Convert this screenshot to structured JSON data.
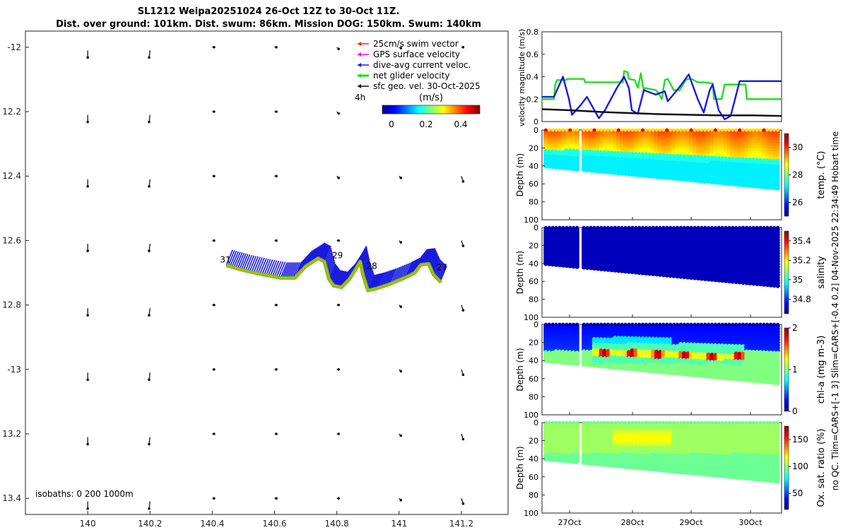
{
  "title": {
    "line1": "SL1212 Weipa20251024 26-Oct 12Z to 30-Oct 11Z.",
    "line2": "Dist. over ground: 101km. Dist. swum: 86km. Mission DOG: 150km. Swum: 140km"
  },
  "side_label": {
    "line1": "no QC. Tlim=CARS+[-1 3] Slim=CARS+[-0.4 0.2] 04-Nov-2025 22:34:49 Hobart time"
  },
  "colors": {
    "swim": "#ff2020",
    "gps": "#ff00ff",
    "dive_avg": "#1a1adf",
    "net_glider": "#22dd22",
    "sfc_geo": "#111111",
    "track_orange": "#ff9900"
  },
  "chart_data": [
    {
      "id": "map",
      "type": "scatter",
      "title": "",
      "xlabel": "",
      "ylabel": "",
      "xlim": [
        139.8,
        141.35
      ],
      "ylim": [
        -13.45,
        -11.95
      ],
      "x_ticks": [
        140,
        140.2,
        140.4,
        140.6,
        140.8,
        141,
        141.2
      ],
      "x_tick_labels": [
        "140",
        "140.2",
        "140.4",
        "140.6",
        "140.8",
        "141",
        "141.2"
      ],
      "y_ticks": [
        -12,
        -12.2,
        -12.4,
        -12.6,
        -12.8,
        -13,
        -13.2,
        -13.4
      ],
      "y_tick_labels": [
        "-12",
        "12.2",
        "12.4",
        "12.6",
        "12.8",
        "-13",
        "13.2",
        "13.4"
      ],
      "legend": [
        {
          "label": "25cm/s swim vector",
          "color": "#ff2020"
        },
        {
          "label": "GPS surface velocity",
          "color": "#ff00ff"
        },
        {
          "label": "dive-avg current veloc.",
          "color": "#1a1adf"
        },
        {
          "label": "net glider velocity",
          "color": "#22dd22"
        },
        {
          "label": "sfc geo. vel. 30-Oct-2025",
          "color": "#111111"
        }
      ],
      "legend_extra": "4h",
      "colorbar_label": "(m/s)",
      "colorbar_ticks": [
        "0",
        "0.2",
        "0.4"
      ],
      "isobaths_label": "isobaths: 0   200  1000m",
      "track": [
        [
          140.445,
          -12.677
        ],
        [
          140.5,
          -12.692
        ],
        [
          140.56,
          -12.705
        ],
        [
          140.62,
          -12.716
        ],
        [
          140.665,
          -12.716
        ],
        [
          140.7,
          -12.68
        ],
        [
          140.74,
          -12.655
        ],
        [
          140.76,
          -12.665
        ],
        [
          140.775,
          -12.72
        ],
        [
          140.79,
          -12.74
        ],
        [
          140.815,
          -12.745
        ],
        [
          140.84,
          -12.72
        ],
        [
          140.86,
          -12.69
        ],
        [
          140.875,
          -12.665
        ],
        [
          140.885,
          -12.71
        ],
        [
          140.9,
          -12.755
        ],
        [
          140.93,
          -12.748
        ],
        [
          140.97,
          -12.735
        ],
        [
          141.02,
          -12.715
        ],
        [
          141.05,
          -12.7
        ],
        [
          141.07,
          -12.675
        ],
        [
          141.095,
          -12.672
        ],
        [
          141.11,
          -12.705
        ],
        [
          141.135,
          -12.73
        ]
      ],
      "day_labels": [
        {
          "text": "31",
          "x": 140.425,
          "y": -12.668
        },
        {
          "text": "29",
          "x": 140.785,
          "y": -12.655
        },
        {
          "text": "28",
          "x": 140.895,
          "y": -12.688
        },
        {
          "text": "27",
          "x": 141.12,
          "y": -12.692
        }
      ],
      "geo_vectors": [
        {
          "lon": 140,
          "lat": -12.01,
          "u": 0.0,
          "v": -0.04
        },
        {
          "lon": 140.2,
          "lat": -12.01,
          "u": -0.005,
          "v": -0.04
        },
        {
          "lon": 140.4,
          "lat": -12.0,
          "u": 0.01,
          "v": 0.0
        },
        {
          "lon": 140.6,
          "lat": -12.0,
          "u": 0.01,
          "v": 0.0
        },
        {
          "lon": 140.8,
          "lat": -12.0,
          "u": 0.01,
          "v": -0.01
        },
        {
          "lon": 141,
          "lat": -12.0,
          "u": 0.01,
          "v": -0.005
        },
        {
          "lon": 141.2,
          "lat": -12.0,
          "u": 0.01,
          "v": 0.0
        },
        {
          "lon": 140,
          "lat": -12.21,
          "u": 0.0,
          "v": -0.04
        },
        {
          "lon": 140.2,
          "lat": -12.21,
          "u": -0.005,
          "v": -0.04
        },
        {
          "lon": 140.4,
          "lat": -12.2,
          "u": 0.01,
          "v": 0.0
        },
        {
          "lon": 140.6,
          "lat": -12.2,
          "u": 0.01,
          "v": 0.0
        },
        {
          "lon": 140.8,
          "lat": -12.2,
          "u": 0.01,
          "v": -0.01
        },
        {
          "lon": 141,
          "lat": -12.2,
          "u": 0.01,
          "v": 0.0
        },
        {
          "lon": 141.2,
          "lat": -12.2,
          "u": 0.01,
          "v": -0.005
        },
        {
          "lon": 140,
          "lat": -12.41,
          "u": 0.0,
          "v": -0.04
        },
        {
          "lon": 140.2,
          "lat": -12.41,
          "u": -0.005,
          "v": -0.04
        },
        {
          "lon": 140.4,
          "lat": -12.4,
          "u": 0.01,
          "v": 0.0
        },
        {
          "lon": 140.6,
          "lat": -12.4,
          "u": 0.01,
          "v": 0.0
        },
        {
          "lon": 140.8,
          "lat": -12.4,
          "u": 0.01,
          "v": -0.01
        },
        {
          "lon": 141,
          "lat": -12.4,
          "u": 0.01,
          "v": -0.01
        },
        {
          "lon": 141.2,
          "lat": -12.4,
          "u": 0.01,
          "v": -0.03
        },
        {
          "lon": 140,
          "lat": -12.61,
          "u": 0.0,
          "v": -0.04
        },
        {
          "lon": 140.2,
          "lat": -12.61,
          "u": -0.005,
          "v": -0.04
        },
        {
          "lon": 140.4,
          "lat": -12.6,
          "u": 0.01,
          "v": 0.0
        },
        {
          "lon": 140.6,
          "lat": -12.6,
          "u": 0.01,
          "v": 0.0
        },
        {
          "lon": 140.8,
          "lat": -12.6,
          "u": 0.01,
          "v": 0.0
        },
        {
          "lon": 141,
          "lat": -12.6,
          "u": 0.01,
          "v": -0.01
        },
        {
          "lon": 141.2,
          "lat": -12.6,
          "u": 0.01,
          "v": -0.03
        },
        {
          "lon": 140,
          "lat": -12.81,
          "u": 0.0,
          "v": -0.04
        },
        {
          "lon": 140.2,
          "lat": -12.81,
          "u": -0.005,
          "v": -0.04
        },
        {
          "lon": 140.4,
          "lat": -12.8,
          "u": 0.01,
          "v": 0.0
        },
        {
          "lon": 140.6,
          "lat": -12.8,
          "u": 0.01,
          "v": 0.0
        },
        {
          "lon": 140.8,
          "lat": -12.8,
          "u": 0.01,
          "v": 0.0
        },
        {
          "lon": 141,
          "lat": -12.8,
          "u": 0.01,
          "v": -0.01
        },
        {
          "lon": 141.2,
          "lat": -12.8,
          "u": 0.01,
          "v": -0.03
        },
        {
          "lon": 140,
          "lat": -13.01,
          "u": 0.0,
          "v": -0.04
        },
        {
          "lon": 140.2,
          "lat": -13.01,
          "u": -0.005,
          "v": -0.04
        },
        {
          "lon": 140.4,
          "lat": -13.0,
          "u": 0.01,
          "v": 0.0
        },
        {
          "lon": 140.6,
          "lat": -13.0,
          "u": 0.01,
          "v": 0.0
        },
        {
          "lon": 140.8,
          "lat": -13.0,
          "u": 0.01,
          "v": 0.0
        },
        {
          "lon": 141,
          "lat": -13.0,
          "u": 0.01,
          "v": -0.01
        },
        {
          "lon": 141.2,
          "lat": -13.0,
          "u": 0.01,
          "v": -0.03
        },
        {
          "lon": 140,
          "lat": -13.21,
          "u": 0.0,
          "v": -0.04
        },
        {
          "lon": 140.2,
          "lat": -13.21,
          "u": -0.005,
          "v": -0.04
        },
        {
          "lon": 140.4,
          "lat": -13.2,
          "u": 0.01,
          "v": 0.0
        },
        {
          "lon": 140.6,
          "lat": -13.2,
          "u": 0.01,
          "v": 0.0
        },
        {
          "lon": 140.8,
          "lat": -13.2,
          "u": 0.01,
          "v": 0.0
        },
        {
          "lon": 141,
          "lat": -13.2,
          "u": 0.01,
          "v": -0.01
        },
        {
          "lon": 141.2,
          "lat": -13.2,
          "u": 0.01,
          "v": -0.03
        },
        {
          "lon": 140,
          "lat": -13.41,
          "u": 0.0,
          "v": -0.04
        },
        {
          "lon": 140.2,
          "lat": -13.41,
          "u": -0.005,
          "v": -0.04
        },
        {
          "lon": 140.4,
          "lat": -13.4,
          "u": 0.01,
          "v": 0.0
        },
        {
          "lon": 140.6,
          "lat": -13.4,
          "u": 0.01,
          "v": 0.0
        },
        {
          "lon": 140.8,
          "lat": -13.4,
          "u": 0.01,
          "v": 0.0
        },
        {
          "lon": 141,
          "lat": -13.4,
          "u": 0.01,
          "v": -0.01
        },
        {
          "lon": 141.2,
          "lat": -13.4,
          "u": 0.01,
          "v": -0.03
        }
      ]
    },
    {
      "id": "velocity",
      "type": "line",
      "xlabel": "",
      "ylabel": "velocity magnitude (m/s)",
      "xlim": [
        26.5,
        30.5
      ],
      "ylim": [
        0,
        0.8
      ],
      "y_ticks": [
        0,
        0.2,
        0.4,
        0.6,
        0.8
      ],
      "y_tick_labels": [
        "0",
        "0.2",
        "0.4",
        "0.6",
        "0.8"
      ],
      "series": [
        {
          "name": "net glider velocity",
          "color": "#22dd22",
          "x": [
            26.5,
            26.7,
            26.72,
            26.75,
            26.9,
            26.92,
            27.2,
            27.22,
            27.5,
            27.85,
            27.87,
            27.93,
            27.95,
            28.05,
            28.1,
            28.15,
            28.2,
            28.22,
            28.4,
            28.45,
            28.5,
            28.55,
            28.6,
            28.7,
            28.8,
            28.9,
            28.95,
            29.0,
            29.1,
            29.2,
            29.35,
            29.37,
            29.5,
            29.55,
            29.9,
            29.92,
            30.5
          ],
          "y": [
            0.2,
            0.2,
            0.33,
            0.37,
            0.37,
            0.38,
            0.38,
            0.35,
            0.35,
            0.35,
            0.45,
            0.44,
            0.38,
            0.37,
            0.3,
            0.43,
            0.27,
            0.3,
            0.28,
            0.25,
            0.2,
            0.37,
            0.38,
            0.28,
            0.28,
            0.37,
            0.38,
            0.38,
            0.35,
            0.35,
            0.34,
            0.2,
            0.2,
            0.33,
            0.33,
            0.2,
            0.2
          ]
        },
        {
          "name": "dive-avg current veloc.",
          "color": "#1a1adf",
          "x": [
            26.5,
            26.7,
            26.85,
            26.95,
            27.0,
            27.15,
            27.25,
            27.45,
            27.55,
            27.75,
            27.87,
            27.95,
            28.0,
            28.1,
            28.2,
            28.4,
            28.55,
            28.6,
            28.8,
            28.95,
            29.1,
            29.2,
            29.3,
            29.35,
            29.45,
            29.55,
            29.65,
            29.8,
            30.0,
            30.5
          ],
          "y": [
            0.22,
            0.22,
            0.4,
            0.2,
            0.06,
            0.15,
            0.22,
            0.03,
            0.1,
            0.3,
            0.4,
            0.3,
            0.1,
            0.07,
            0.28,
            0.24,
            0.27,
            0.18,
            0.31,
            0.42,
            0.2,
            0.08,
            0.28,
            0.33,
            0.1,
            0.02,
            0.05,
            0.36,
            0.36,
            0.36
          ]
        },
        {
          "name": "sfc geo. vel.",
          "color": "#111111",
          "x": [
            26.5,
            27.0,
            27.5,
            28.0,
            28.5,
            29.0,
            29.5,
            30.0,
            30.5
          ],
          "y": [
            0.11,
            0.1,
            0.085,
            0.075,
            0.065,
            0.06,
            0.055,
            0.055,
            0.05
          ]
        }
      ]
    },
    {
      "id": "temperature",
      "type": "heatmap",
      "ylabel": "Depth (m)",
      "clabel": "temp. (°C)",
      "ylim": [
        100,
        0
      ],
      "y_ticks": [
        0,
        20,
        40,
        60,
        80,
        100
      ],
      "y_tick_labels": [
        "0",
        "20",
        "40",
        "60",
        "80",
        "100"
      ],
      "cbar_range": [
        25,
        31
      ],
      "cbar_ticks": [
        26,
        28,
        30
      ],
      "cbar_tick_labels": [
        "26",
        "28",
        "30"
      ]
    },
    {
      "id": "salinity",
      "type": "heatmap",
      "ylabel": "Depth (m)",
      "clabel": "salinity",
      "ylim": [
        100,
        0
      ],
      "y_ticks": [
        0,
        20,
        40,
        60,
        80,
        100
      ],
      "y_tick_labels": [
        "0",
        "20",
        "40",
        "60",
        "80",
        "100"
      ],
      "cbar_range": [
        34.65,
        35.5
      ],
      "cbar_ticks": [
        34.8,
        35,
        35.2,
        35.4
      ],
      "cbar_tick_labels": [
        "34.8",
        "35",
        "35.2",
        "35.4"
      ]
    },
    {
      "id": "chla",
      "type": "heatmap",
      "ylabel": "Depth (m)",
      "clabel": "chl-a (mg m-3)",
      "ylim": [
        100,
        0
      ],
      "y_ticks": [
        0,
        20,
        40,
        60,
        80,
        100
      ],
      "y_tick_labels": [
        "0",
        "20",
        "40",
        "60",
        "80",
        "100"
      ],
      "cbar_range": [
        0,
        2
      ],
      "cbar_ticks": [
        0,
        1,
        2
      ],
      "cbar_tick_labels": [
        "0",
        "1",
        "2"
      ]
    },
    {
      "id": "oxygen",
      "type": "heatmap",
      "ylabel": "Depth (m)",
      "clabel": "Ox. sat. ratio (%)",
      "ylim": [
        100,
        0
      ],
      "y_ticks": [
        0,
        20,
        40,
        60,
        80,
        100
      ],
      "y_tick_labels": [
        "0",
        "20",
        "40",
        "60",
        "80",
        "100"
      ],
      "x_tick_labels": [
        "27Oct",
        "28Oct",
        "29Oct",
        "30Oct"
      ],
      "cbar_range": [
        20,
        175
      ],
      "cbar_ticks": [
        50,
        100,
        150
      ],
      "cbar_tick_labels": [
        "50",
        "100",
        "150"
      ]
    }
  ]
}
